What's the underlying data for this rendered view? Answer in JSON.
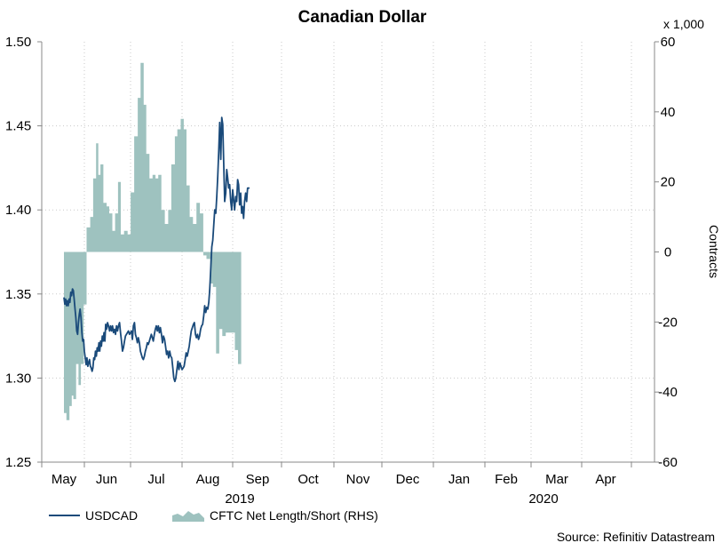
{
  "chart_data": {
    "type": "line",
    "title": "Canadian Dollar",
    "source": "Source: Refinitiv Datastream",
    "x_months": [
      "May",
      "Jun",
      "Jul",
      "Aug",
      "Sep",
      "Oct",
      "Nov",
      "Dec",
      "Jan",
      "Feb",
      "Mar",
      "Apr"
    ],
    "x_years": [
      "2019",
      "2020"
    ],
    "left_axis": {
      "ylim": [
        1.25,
        1.5
      ],
      "ticks": [
        "1.50",
        "1.45",
        "1.40",
        "1.35",
        "1.30",
        "1.25"
      ]
    },
    "right_axis": {
      "label": "Contracts",
      "unit": "x 1,000",
      "ylim": [
        -60,
        60
      ],
      "ticks": [
        "60",
        "40",
        "20",
        "0",
        "-20",
        "-40",
        "-60"
      ]
    },
    "series": [
      {
        "name": "USDCAD",
        "kind": "line",
        "color": "#1a4a7a",
        "points": [
          [
            0,
            1.348
          ],
          [
            0.02,
            1.344
          ],
          [
            0.04,
            1.347
          ],
          [
            0.06,
            1.343
          ],
          [
            0.08,
            1.346
          ],
          [
            0.1,
            1.343
          ],
          [
            0.12,
            1.347
          ],
          [
            0.14,
            1.345
          ],
          [
            0.16,
            1.351
          ],
          [
            0.18,
            1.349
          ],
          [
            0.2,
            1.353
          ],
          [
            0.22,
            1.352
          ],
          [
            0.24,
            1.347
          ],
          [
            0.26,
            1.341
          ],
          [
            0.28,
            1.336
          ],
          [
            0.3,
            1.328
          ],
          [
            0.32,
            1.326
          ],
          [
            0.34,
            1.333
          ],
          [
            0.36,
            1.338
          ],
          [
            0.38,
            1.341
          ],
          [
            0.4,
            1.336
          ],
          [
            0.42,
            1.327
          ],
          [
            0.44,
            1.322
          ],
          [
            0.46,
            1.323
          ],
          [
            0.48,
            1.316
          ],
          [
            0.5,
            1.312
          ],
          [
            0.52,
            1.308
          ],
          [
            0.54,
            1.312
          ],
          [
            0.56,
            1.307
          ],
          [
            0.58,
            1.309
          ],
          [
            0.6,
            1.311
          ],
          [
            0.62,
            1.307
          ],
          [
            0.64,
            1.306
          ],
          [
            0.66,
            1.304
          ],
          [
            0.68,
            1.306
          ],
          [
            0.7,
            1.312
          ],
          [
            0.72,
            1.311
          ],
          [
            0.74,
            1.316
          ],
          [
            0.76,
            1.313
          ],
          [
            0.78,
            1.318
          ],
          [
            0.8,
            1.316
          ],
          [
            0.82,
            1.321
          ],
          [
            0.84,
            1.316
          ],
          [
            0.86,
            1.322
          ],
          [
            0.88,
            1.319
          ],
          [
            0.9,
            1.325
          ],
          [
            0.92,
            1.322
          ],
          [
            0.94,
            1.327
          ],
          [
            0.96,
            1.322
          ],
          [
            0.98,
            1.332
          ],
          [
            1.0,
            1.329
          ],
          [
            1.02,
            1.333
          ],
          [
            1.04,
            1.331
          ],
          [
            1.06,
            1.328
          ],
          [
            1.08,
            1.331
          ],
          [
            1.1,
            1.328
          ],
          [
            1.12,
            1.331
          ],
          [
            1.14,
            1.327
          ],
          [
            1.16,
            1.329
          ],
          [
            1.18,
            1.326
          ],
          [
            1.2,
            1.331
          ],
          [
            1.22,
            1.328
          ],
          [
            1.24,
            1.331
          ],
          [
            1.26,
            1.333
          ],
          [
            1.28,
            1.327
          ],
          [
            1.3,
            1.322
          ],
          [
            1.32,
            1.316
          ],
          [
            1.34,
            1.318
          ],
          [
            1.36,
            1.322
          ],
          [
            1.38,
            1.325
          ],
          [
            1.4,
            1.326
          ],
          [
            1.42,
            1.327
          ],
          [
            1.44,
            1.328
          ],
          [
            1.46,
            1.326
          ],
          [
            1.48,
            1.327
          ],
          [
            1.5,
            1.328
          ],
          [
            1.52,
            1.323
          ],
          [
            1.54,
            1.331
          ],
          [
            1.56,
            1.333
          ],
          [
            1.58,
            1.326
          ],
          [
            1.6,
            1.324
          ],
          [
            1.62,
            1.321
          ],
          [
            1.64,
            1.324
          ],
          [
            1.66,
            1.321
          ],
          [
            1.68,
            1.316
          ],
          [
            1.7,
            1.314
          ],
          [
            1.72,
            1.312
          ],
          [
            1.74,
            1.311
          ],
          [
            1.76,
            1.313
          ],
          [
            1.78,
            1.316
          ],
          [
            1.8,
            1.318
          ],
          [
            1.82,
            1.321
          ],
          [
            1.84,
            1.32
          ],
          [
            1.86,
            1.322
          ],
          [
            1.88,
            1.324
          ],
          [
            1.9,
            1.326
          ],
          [
            1.92,
            1.324
          ],
          [
            1.94,
            1.322
          ],
          [
            1.96,
            1.326
          ],
          [
            1.98,
            1.329
          ],
          [
            2.0,
            1.331
          ],
          [
            2.02,
            1.328
          ],
          [
            2.04,
            1.331
          ],
          [
            2.06,
            1.327
          ],
          [
            2.08,
            1.33
          ],
          [
            2.1,
            1.326
          ],
          [
            2.12,
            1.321
          ],
          [
            2.14,
            1.325
          ],
          [
            2.16,
            1.323
          ],
          [
            2.18,
            1.319
          ],
          [
            2.2,
            1.314
          ],
          [
            2.22,
            1.316
          ],
          [
            2.24,
            1.312
          ],
          [
            2.26,
            1.316
          ],
          [
            2.28,
            1.313
          ],
          [
            2.3,
            1.312
          ],
          [
            2.32,
            1.306
          ],
          [
            2.34,
            1.3
          ],
          [
            2.36,
            1.298
          ],
          [
            2.38,
            1.3
          ],
          [
            2.4,
            1.305
          ],
          [
            2.42,
            1.31
          ],
          [
            2.44,
            1.305
          ],
          [
            2.46,
            1.309
          ],
          [
            2.48,
            1.307
          ],
          [
            2.5,
            1.305
          ],
          [
            2.52,
            1.306
          ],
          [
            2.54,
            1.307
          ],
          [
            2.56,
            1.311
          ],
          [
            2.58,
            1.315
          ],
          [
            2.6,
            1.313
          ],
          [
            2.62,
            1.316
          ],
          [
            2.64,
            1.319
          ],
          [
            2.66,
            1.324
          ],
          [
            2.68,
            1.328
          ],
          [
            2.7,
            1.33
          ],
          [
            2.72,
            1.332
          ],
          [
            2.74,
            1.333
          ],
          [
            2.76,
            1.326
          ],
          [
            2.78,
            1.324
          ],
          [
            2.8,
            1.326
          ],
          [
            2.82,
            1.323
          ],
          [
            2.84,
            1.325
          ],
          [
            2.86,
            1.329
          ],
          [
            2.88,
            1.331
          ],
          [
            2.9,
            1.332
          ],
          [
            2.92,
            1.337
          ],
          [
            2.94,
            1.343
          ],
          [
            2.96,
            1.339
          ],
          [
            2.98,
            1.342
          ],
          [
            3.0,
            1.341
          ],
          [
            3.02,
            1.345
          ],
          [
            3.04,
            1.353
          ],
          [
            3.06,
            1.366
          ],
          [
            3.08,
            1.378
          ],
          [
            3.1,
            1.382
          ],
          [
            3.12,
            1.391
          ],
          [
            3.14,
            1.4
          ],
          [
            3.16,
            1.398
          ],
          [
            3.18,
            1.408
          ],
          [
            3.2,
            1.42
          ],
          [
            3.22,
            1.435
          ],
          [
            3.24,
            1.452
          ],
          [
            3.26,
            1.43
          ],
          [
            3.28,
            1.455
          ],
          [
            3.3,
            1.451
          ],
          [
            3.32,
            1.428
          ],
          [
            3.34,
            1.405
          ],
          [
            3.36,
            1.41
          ],
          [
            3.38,
            1.424
          ],
          [
            3.4,
            1.419
          ],
          [
            3.42,
            1.413
          ],
          [
            3.44,
            1.415
          ],
          [
            3.46,
            1.405
          ],
          [
            3.48,
            1.4
          ],
          [
            3.5,
            1.412
          ],
          [
            3.52,
            1.406
          ],
          [
            3.54,
            1.4
          ],
          [
            3.56,
            1.408
          ],
          [
            3.58,
            1.405
          ],
          [
            3.6,
            1.418
          ],
          [
            3.62,
            1.415
          ],
          [
            3.64,
            1.403
          ],
          [
            3.66,
            1.41
          ],
          [
            3.68,
            1.398
          ],
          [
            3.7,
            1.402
          ],
          [
            3.72,
            1.395
          ],
          [
            3.74,
            1.405
          ],
          [
            3.76,
            1.41
          ],
          [
            3.78,
            1.405
          ],
          [
            3.8,
            1.413
          ],
          [
            3.82,
            1.413
          ],
          [
            3.84,
            1.413
          ]
        ]
      },
      {
        "name": "CFTC Net Length/Short (RHS)",
        "kind": "area",
        "color": "#9ec2bf",
        "points": [
          [
            0,
            -46
          ],
          [
            0.0586,
            -46
          ],
          [
            0.0586,
            -48
          ],
          [
            0.1285,
            -48
          ],
          [
            0.1285,
            -44
          ],
          [
            0.1832,
            -44
          ],
          [
            0.1832,
            -41
          ],
          [
            0.2212,
            -41
          ],
          [
            0.2212,
            -42
          ],
          [
            0.2856,
            -42
          ],
          [
            0.2856,
            -32
          ],
          [
            0.3423,
            -32
          ],
          [
            0.3423,
            -38
          ],
          [
            0.3977,
            -38
          ],
          [
            0.3977,
            -32
          ],
          [
            0.4622,
            -32
          ],
          [
            0.4622,
            -15
          ],
          [
            0.5307,
            -15
          ],
          [
            0.5307,
            7
          ],
          [
            0.6165,
            7
          ],
          [
            0.6165,
            10
          ],
          [
            0.6844,
            10
          ],
          [
            0.6844,
            21
          ],
          [
            0.7534,
            21
          ],
          [
            0.7534,
            31
          ],
          [
            0.8053,
            31
          ],
          [
            0.8053,
            22
          ],
          [
            0.8559,
            22
          ],
          [
            0.8559,
            25
          ],
          [
            0.9244,
            25
          ],
          [
            0.9244,
            14
          ],
          [
            1.0012,
            14
          ],
          [
            1.0012,
            13
          ],
          [
            1.0544,
            13
          ],
          [
            1.0544,
            11
          ],
          [
            1.1165,
            11
          ],
          [
            1.1165,
            6
          ],
          [
            1.1709,
            6
          ],
          [
            1.1709,
            11
          ],
          [
            1.2303,
            11
          ],
          [
            1.2303,
            20
          ],
          [
            1.2866,
            20
          ],
          [
            1.2866,
            5
          ],
          [
            1.3521,
            5
          ],
          [
            1.3521,
            6
          ],
          [
            1.4239,
            6
          ],
          [
            1.4239,
            5
          ],
          [
            1.4843,
            5
          ],
          [
            1.4843,
            17
          ],
          [
            1.5561,
            17
          ],
          [
            1.5561,
            33
          ],
          [
            1.6261,
            33
          ],
          [
            1.6261,
            44
          ],
          [
            1.6838,
            44
          ],
          [
            1.6838,
            54
          ],
          [
            1.7459,
            54
          ],
          [
            1.7459,
            42
          ],
          [
            1.7976,
            42
          ],
          [
            1.7976,
            28
          ],
          [
            1.8621,
            28
          ],
          [
            1.8621,
            21
          ],
          [
            1.9242,
            21
          ],
          [
            1.9242,
            22
          ],
          [
            1.9847,
            22
          ],
          [
            1.9847,
            21
          ],
          [
            2.0377,
            21
          ],
          [
            2.0377,
            22
          ],
          [
            2.0982,
            22
          ],
          [
            2.0982,
            12
          ],
          [
            2.1662,
            12
          ],
          [
            2.1662,
            8
          ],
          [
            2.2305,
            8
          ],
          [
            2.2305,
            12
          ],
          [
            2.292,
            12
          ],
          [
            2.292,
            25
          ],
          [
            2.3603,
            25
          ],
          [
            2.3603,
            33
          ],
          [
            2.4093,
            33
          ],
          [
            2.4093,
            35
          ],
          [
            2.4748,
            35
          ],
          [
            2.4748,
            38
          ],
          [
            2.5321,
            38
          ],
          [
            2.5321,
            35
          ],
          [
            2.5858,
            35
          ],
          [
            2.5858,
            19
          ],
          [
            2.6484,
            19
          ],
          [
            2.6484,
            10
          ],
          [
            2.7122,
            10
          ],
          [
            2.7122,
            8
          ],
          [
            2.7795,
            8
          ],
          [
            2.7795,
            14
          ],
          [
            2.8474,
            14
          ],
          [
            2.8474,
            11
          ],
          [
            2.9117,
            11
          ],
          [
            2.9117,
            -1
          ],
          [
            2.9747,
            -1
          ],
          [
            2.9747,
            -2
          ],
          [
            3.0484,
            -2
          ],
          [
            3.0484,
            -9
          ],
          [
            3.1026,
            -9
          ],
          [
            3.1026,
            -10
          ],
          [
            3.1664,
            -10
          ],
          [
            3.1664,
            -29
          ],
          [
            3.2298,
            -29
          ],
          [
            3.2298,
            -22
          ],
          [
            3.2917,
            -22
          ],
          [
            3.2917,
            -24
          ],
          [
            3.3605,
            -24
          ],
          [
            3.3605,
            -23
          ],
          [
            3.4208,
            -23
          ],
          [
            3.4208,
            -23
          ],
          [
            3.4876,
            -23
          ],
          [
            3.4876,
            -23
          ],
          [
            3.5441,
            -23
          ],
          [
            3.5441,
            -28
          ],
          [
            3.6072,
            -28
          ],
          [
            3.6072,
            -32
          ],
          [
            3.6716,
            -32
          ]
        ]
      }
    ]
  },
  "legend": {
    "usdcad": "USDCAD",
    "cftc": "CFTC Net Length/Short (RHS)"
  }
}
